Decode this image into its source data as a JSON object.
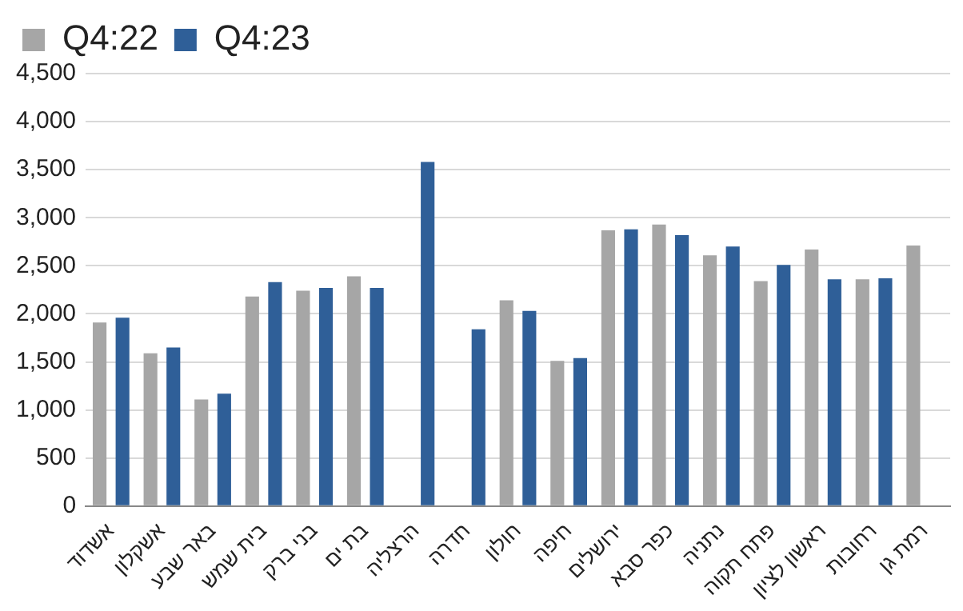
{
  "chart_data": {
    "type": "bar",
    "categories": [
      "אשדוד",
      "אשקלון",
      "באר שבע",
      "בית שמש",
      "בני ברק",
      "בת ים",
      "הרצליה",
      "חדרה",
      "חולון",
      "חיפה",
      "ירושלים",
      "כפר סבא",
      "נתניה",
      "פתח תקוה",
      "ראשון לציון",
      "רחובות",
      "רמת גן"
    ],
    "series": [
      {
        "name": "Q4:22",
        "color": "#a6a6a6",
        "values": [
          1910,
          1590,
          1110,
          2180,
          2240,
          2390,
          null,
          null,
          2140,
          1510,
          2870,
          2930,
          2610,
          2340,
          2670,
          2360,
          2710
        ]
      },
      {
        "name": "Q4:23",
        "color": "#2f5f98",
        "values": [
          1960,
          1650,
          1170,
          2330,
          2270,
          2270,
          3580,
          1840,
          2030,
          1540,
          2880,
          2820,
          2700,
          2510,
          2360,
          2370,
          null
        ]
      }
    ],
    "ylim": [
      0,
      4500
    ],
    "yticks": [
      0,
      500,
      {
        "value": 1000,
        "label": "1,000"
      },
      {
        "value": 1500,
        "label": "1,500"
      },
      {
        "value": 2000,
        "label": "2,000"
      },
      {
        "value": 2500,
        "label": "2,500"
      },
      {
        "value": 3000,
        "label": "3,000"
      },
      {
        "value": 3500,
        "label": "3,500"
      },
      {
        "value": 4000,
        "label": "4,000"
      },
      {
        "value": 4500,
        "label": "4,500"
      }
    ],
    "grid": "y",
    "legend": "top left"
  }
}
